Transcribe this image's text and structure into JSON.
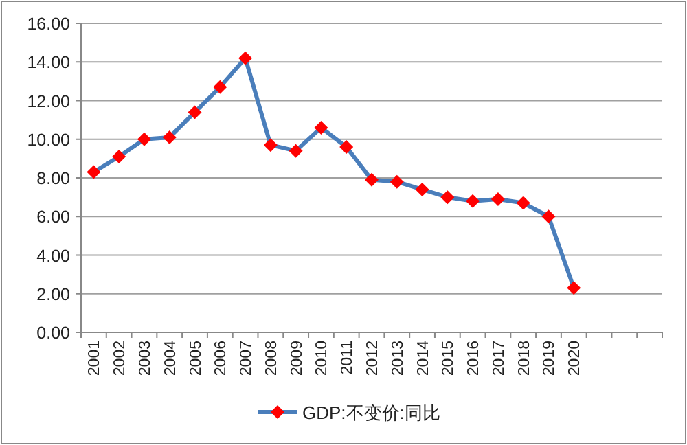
{
  "chart_data": {
    "type": "line",
    "categories": [
      "2001",
      "2002",
      "2003",
      "2004",
      "2005",
      "2006",
      "2007",
      "2008",
      "2009",
      "2010",
      "2011",
      "2012",
      "2013",
      "2014",
      "2015",
      "2016",
      "2017",
      "2018",
      "2019",
      "2020",
      null,
      null,
      null
    ],
    "series": [
      {
        "name": "GDP:不变价:同比",
        "color": "#4a7ebb",
        "values": [
          8.3,
          9.1,
          10.0,
          10.1,
          11.4,
          12.7,
          14.2,
          9.7,
          9.4,
          10.6,
          9.6,
          7.9,
          7.8,
          7.4,
          7.0,
          6.8,
          6.9,
          6.7,
          6.0,
          2.3,
          null,
          null,
          null
        ],
        "colors": [
          "#ff0000",
          "#ff0000",
          "#ff0000",
          "#ff0000",
          "#ff0000",
          "#ff0000",
          "#ff0000",
          "#ff0000",
          "#ff0000",
          "#ff0000",
          "#ff0000",
          "#ff0000",
          "#ff0000",
          "#ff0000",
          "#ff0000",
          "#ff0000",
          "#ff0000",
          "#ff0000",
          "#ff0000",
          "#ff0000",
          null,
          null,
          null
        ]
      }
    ],
    "marker": "diamond",
    "ylim": [
      0,
      16
    ],
    "yticks": [
      {
        "value": 0,
        "label": "0.00"
      },
      {
        "value": 2,
        "label": "2.00"
      },
      {
        "value": 4,
        "label": "4.00"
      },
      {
        "value": 6,
        "label": "6.00"
      },
      {
        "value": 8,
        "label": "8.00"
      },
      {
        "value": 10,
        "label": "10.00"
      },
      {
        "value": 12,
        "label": "12.00"
      },
      {
        "value": 14,
        "label": "14.00"
      },
      {
        "value": 16,
        "label": "16.00"
      }
    ],
    "grid": "y",
    "legend": "bottom"
  }
}
